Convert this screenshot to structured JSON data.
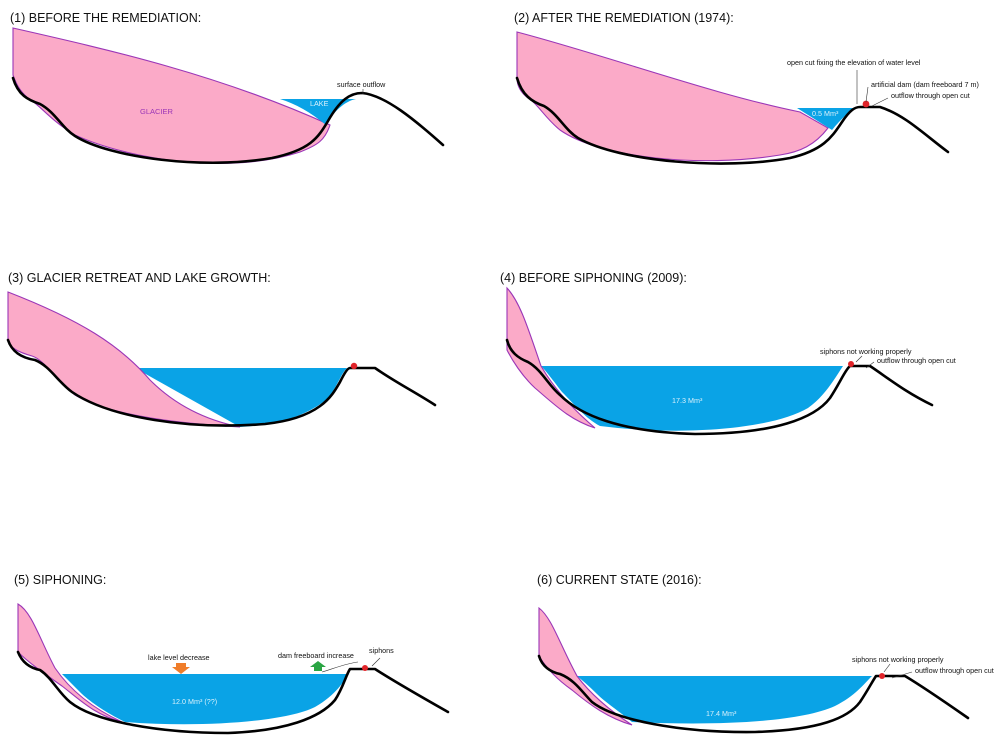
{
  "panels": [
    {
      "title": "(1)  BEFORE THE REMEDIATION:",
      "glacier_label": "GLACIER",
      "lake_label": "LAKE",
      "annotations": [
        "surface outflow"
      ]
    },
    {
      "title": "(2)  AFTER THE REMEDIATION (1974):",
      "lake_label": "0.5  Mm³",
      "annotations": [
        "open cut fixing the elevation of water level",
        "artificial dam (dam freeboard 7 m)",
        "outflow through open cut"
      ]
    },
    {
      "title": "(3)  GLACIER RETREAT AND LAKE GROWTH:"
    },
    {
      "title": "(4)   BEFORE SIPHONING (2009):",
      "lake_label": "17.3  Mm³",
      "annotations": [
        "siphons not working properly",
        "outflow through open cut"
      ]
    },
    {
      "title": "(5) SIPHONING:",
      "lake_label": "12.0  Mm³   (??)",
      "annotations": [
        "lake level decrease",
        "dam freeboard increase",
        "siphons"
      ],
      "arrow_colors": {
        "decrease": "#f07d2a",
        "increase": "#2aa543"
      }
    },
    {
      "title": "(6) CURRENT STATE (2016):",
      "lake_label": "17.4  Mm³",
      "annotations": [
        "siphons not working properly",
        "outflow through open cut"
      ]
    }
  ],
  "colors": {
    "glacier": "#fbaac8",
    "glacier_outline": "#9b36b7",
    "lake": "#0aa3e6",
    "dam": "#e0242a",
    "terrain": "#000000"
  }
}
